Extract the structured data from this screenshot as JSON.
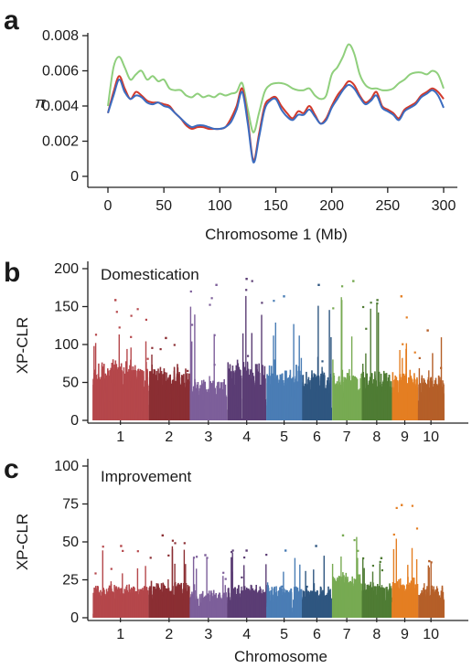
{
  "chart_data": [
    {
      "panel": "a",
      "type": "line",
      "title": "",
      "xlabel": "Chromosome 1 (Mb)",
      "ylabel": "π",
      "xlim": [
        0,
        305
      ],
      "ylim": [
        0,
        0.008
      ],
      "xticks": [
        0,
        50,
        100,
        150,
        200,
        250,
        300
      ],
      "yticks": [
        0,
        0.002,
        0.004,
        0.006,
        0.008
      ],
      "ytick_labels": [
        "0",
        "0.002",
        "0.004",
        "0.006",
        "0.008"
      ],
      "colors": [
        "#8fcf7c",
        "#d23a2c",
        "#3b6cc0"
      ],
      "x": [
        0,
        5,
        10,
        15,
        20,
        25,
        30,
        35,
        40,
        45,
        50,
        55,
        60,
        65,
        70,
        75,
        80,
        85,
        90,
        95,
        100,
        105,
        110,
        115,
        120,
        125,
        130,
        135,
        140,
        145,
        150,
        155,
        160,
        165,
        170,
        175,
        180,
        185,
        190,
        195,
        200,
        205,
        210,
        215,
        220,
        225,
        230,
        235,
        240,
        245,
        250,
        255,
        260,
        265,
        270,
        275,
        280,
        285,
        290,
        295,
        300
      ],
      "series": [
        {
          "values": [
            0.004,
            0.0062,
            0.0068,
            0.0062,
            0.0055,
            0.0058,
            0.006,
            0.0055,
            0.0057,
            0.0054,
            0.0055,
            0.005,
            0.0049,
            0.0049,
            0.0046,
            0.0045,
            0.0047,
            0.0045,
            0.0046,
            0.0045,
            0.0047,
            0.0046,
            0.0047,
            0.0048,
            0.0053,
            0.0038,
            0.0025,
            0.0036,
            0.0048,
            0.0052,
            0.0053,
            0.0053,
            0.0052,
            0.005,
            0.0049,
            0.0049,
            0.005,
            0.0046,
            0.0044,
            0.0046,
            0.0058,
            0.0062,
            0.0068,
            0.0075,
            0.007,
            0.0058,
            0.0052,
            0.005,
            0.005,
            0.0049,
            0.0049,
            0.005,
            0.0053,
            0.0055,
            0.0058,
            0.0059,
            0.0059,
            0.0058,
            0.006,
            0.0058,
            0.005
          ]
        },
        {
          "values": [
            0.0036,
            0.0048,
            0.0057,
            0.005,
            0.0044,
            0.0048,
            0.0046,
            0.0043,
            0.0042,
            0.0042,
            0.0041,
            0.004,
            0.0036,
            0.0033,
            0.0029,
            0.0027,
            0.0028,
            0.0028,
            0.0027,
            0.0027,
            0.0027,
            0.0028,
            0.0033,
            0.004,
            0.005,
            0.0032,
            0.0009,
            0.0024,
            0.004,
            0.0044,
            0.0045,
            0.004,
            0.0036,
            0.0033,
            0.0037,
            0.0036,
            0.004,
            0.0035,
            0.003,
            0.0033,
            0.004,
            0.0046,
            0.005,
            0.0054,
            0.0052,
            0.0046,
            0.0042,
            0.0044,
            0.0048,
            0.004,
            0.0038,
            0.0036,
            0.0033,
            0.0038,
            0.004,
            0.0042,
            0.0046,
            0.0048,
            0.005,
            0.0048,
            0.0044
          ]
        },
        {
          "values": [
            0.0036,
            0.0046,
            0.0055,
            0.0048,
            0.0044,
            0.0046,
            0.0045,
            0.0042,
            0.0041,
            0.0042,
            0.004,
            0.0039,
            0.0036,
            0.0033,
            0.003,
            0.0028,
            0.0029,
            0.0029,
            0.0028,
            0.0027,
            0.0027,
            0.0028,
            0.0031,
            0.0038,
            0.0048,
            0.003,
            0.0008,
            0.0022,
            0.0038,
            0.0043,
            0.0044,
            0.0038,
            0.0034,
            0.0032,
            0.0035,
            0.0035,
            0.0038,
            0.0034,
            0.003,
            0.0032,
            0.0039,
            0.0044,
            0.0049,
            0.0052,
            0.005,
            0.0045,
            0.0041,
            0.0043,
            0.0046,
            0.0039,
            0.0037,
            0.0035,
            0.0032,
            0.0037,
            0.0039,
            0.0041,
            0.0045,
            0.0047,
            0.0049,
            0.0046,
            0.0039
          ]
        }
      ]
    },
    {
      "panel": "b",
      "type": "scatter",
      "title": "Domestication",
      "xlabel": "",
      "ylabel": "XP-CLR",
      "ylim": [
        0,
        200
      ],
      "yticks": [
        0,
        50,
        100,
        150,
        200
      ],
      "categories": [
        "1",
        "2",
        "3",
        "4",
        "5",
        "6",
        "7",
        "8",
        "9",
        "10"
      ],
      "category_widths": [
        0.15,
        0.11,
        0.1,
        0.105,
        0.095,
        0.08,
        0.08,
        0.08,
        0.07,
        0.07
      ],
      "colors": [
        "#b5474b",
        "#8b2e33",
        "#7d5f9a",
        "#5b3d74",
        "#4a7db5",
        "#2f5680",
        "#77aa52",
        "#4f7c34",
        "#e47e22",
        "#b55f28"
      ],
      "chromosome_peaks": [
        160,
        110,
        180,
        188,
        165,
        180,
        185,
        160,
        165,
        120
      ],
      "chromosome_base": [
        65,
        60,
        45,
        65,
        60,
        55,
        55,
        55,
        55,
        50
      ]
    },
    {
      "panel": "c",
      "type": "scatter",
      "title": "Improvement",
      "xlabel": "Chromosome",
      "ylabel": "XP-CLR",
      "ylim": [
        0,
        100
      ],
      "yticks": [
        0,
        25,
        50,
        75,
        100
      ],
      "categories": [
        "1",
        "2",
        "3",
        "4",
        "5",
        "6",
        "7",
        "8",
        "9",
        "10"
      ],
      "category_widths": [
        0.15,
        0.11,
        0.1,
        0.105,
        0.095,
        0.08,
        0.08,
        0.08,
        0.07,
        0.07
      ],
      "colors": [
        "#b5474b",
        "#8b2e33",
        "#7d5f9a",
        "#5b3d74",
        "#4a7db5",
        "#2f5680",
        "#77aa52",
        "#4f7c34",
        "#e47e22",
        "#b55f28"
      ],
      "chromosome_peaks": [
        48,
        55,
        42,
        45,
        45,
        48,
        55,
        40,
        75,
        38
      ],
      "chromosome_base": [
        18,
        20,
        15,
        18,
        18,
        17,
        25,
        20,
        22,
        18
      ]
    }
  ]
}
